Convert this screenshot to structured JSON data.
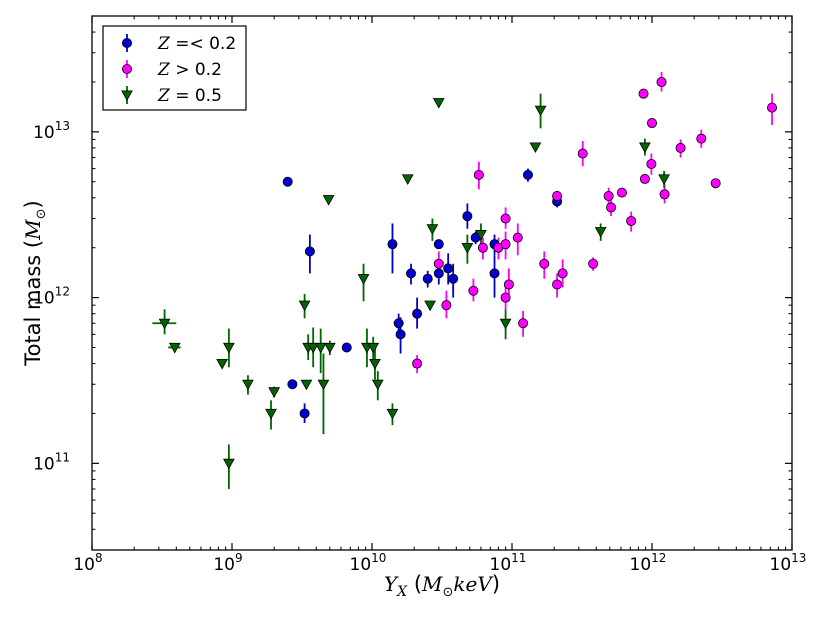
{
  "chart_data": {
    "type": "scatter",
    "xscale": "log",
    "yscale": "log",
    "xlim": [
      100000000.0,
      10000000000000.0
    ],
    "ylim": [
      30000000000.0,
      50000000000000.0
    ],
    "x_ticks": [
      {
        "base": "10",
        "exp": "8",
        "value": 100000000.0
      },
      {
        "base": "10",
        "exp": "9",
        "value": 1000000000.0
      },
      {
        "base": "10",
        "exp": "10",
        "value": 10000000000.0
      },
      {
        "base": "10",
        "exp": "11",
        "value": 100000000000.0
      },
      {
        "base": "10",
        "exp": "12",
        "value": 1000000000000.0
      },
      {
        "base": "10",
        "exp": "13",
        "value": 10000000000000.0
      }
    ],
    "y_ticks": [
      {
        "base": "10",
        "exp": "11",
        "value": 100000000000.0
      },
      {
        "base": "10",
        "exp": "12",
        "value": 1000000000000.0
      },
      {
        "base": "10",
        "exp": "13",
        "value": 10000000000000.0
      }
    ],
    "xlabel": {
      "main": "Y",
      "sub": "X",
      "open": " (",
      "unit": "M",
      "unit_sub": "⊙",
      "unit_rest": "keV",
      "close": ")"
    },
    "ylabel": {
      "main": "Total mass (",
      "unit": "M",
      "unit_sub": "⊙",
      "close": ")"
    },
    "legend_position": "top-left",
    "series": [
      {
        "name": "Z =< 0.2",
        "label_var": "Z",
        "label_rest": " =< 0.2",
        "color": "#0000cc",
        "marker": "circle",
        "points": [
          {
            "x": 2500000000.0,
            "y": 5000000000000.0,
            "lo": 5000000000000.0,
            "hi": 5000000000000.0
          },
          {
            "x": 2700000000.0,
            "y": 300000000000.0,
            "lo": 285000000000.0,
            "hi": 315000000000.0
          },
          {
            "x": 3300000000.0,
            "y": 200000000000.0,
            "lo": 175000000000.0,
            "hi": 230000000000.0
          },
          {
            "x": 3600000000.0,
            "y": 1900000000000.0,
            "lo": 1400000000000.0,
            "hi": 2400000000000.0
          },
          {
            "x": 6600000000.0,
            "y": 500000000000.0,
            "lo": 500000000000.0,
            "hi": 500000000000.0
          },
          {
            "x": 14000000000.0,
            "y": 2100000000000.0,
            "lo": 1400000000000.0,
            "hi": 2800000000000.0
          },
          {
            "x": 15500000000.0,
            "y": 700000000000.0,
            "lo": 620000000000.0,
            "hi": 800000000000.0
          },
          {
            "x": 16000000000.0,
            "y": 600000000000.0,
            "lo": 460000000000.0,
            "hi": 760000000000.0
          },
          {
            "x": 19000000000.0,
            "y": 1400000000000.0,
            "lo": 1200000000000.0,
            "hi": 1600000000000.0
          },
          {
            "x": 21000000000.0,
            "y": 800000000000.0,
            "lo": 650000000000.0,
            "hi": 1000000000000.0
          },
          {
            "x": 25000000000.0,
            "y": 1300000000000.0,
            "lo": 1150000000000.0,
            "hi": 1450000000000.0
          },
          {
            "x": 30000000000.0,
            "y": 2100000000000.0,
            "lo": 2100000000000.0,
            "hi": 2100000000000.0
          },
          {
            "x": 30000000000.0,
            "y": 1400000000000.0,
            "lo": 1200000000000.0,
            "hi": 1650000000000.0
          },
          {
            "x": 35000000000.0,
            "y": 1500000000000.0,
            "lo": 1200000000000.0,
            "hi": 1850000000000.0
          },
          {
            "x": 38000000000.0,
            "y": 1300000000000.0,
            "lo": 1000000000000.0,
            "hi": 1600000000000.0
          },
          {
            "x": 48000000000.0,
            "y": 3100000000000.0,
            "lo": 2600000000000.0,
            "hi": 3700000000000.0
          },
          {
            "x": 55000000000.0,
            "y": 2300000000000.0,
            "lo": 2100000000000.0,
            "hi": 2500000000000.0
          },
          {
            "x": 75000000000.0,
            "y": 2100000000000.0,
            "lo": 1800000000000.0,
            "hi": 2400000000000.0
          },
          {
            "x": 75000000000.0,
            "y": 1400000000000.0,
            "lo": 1000000000000.0,
            "hi": 1800000000000.0
          },
          {
            "x": 130000000000.0,
            "y": 5500000000000.0,
            "lo": 5000000000000.0,
            "hi": 6000000000000.0
          },
          {
            "x": 210000000000.0,
            "y": 3800000000000.0,
            "lo": 3500000000000.0,
            "hi": 4100000000000.0
          }
        ]
      },
      {
        "name": "Z > 0.2",
        "label_var": "Z",
        "label_rest": " > 0.2",
        "color": "#ff00ff",
        "marker": "circle",
        "points": [
          {
            "x": 21000000000.0,
            "y": 400000000000.0,
            "lo": 350000000000.0,
            "hi": 450000000000.0
          },
          {
            "x": 30000000000.0,
            "y": 1600000000000.0,
            "lo": 1300000000000.0,
            "hi": 1900000000000.0
          },
          {
            "x": 34000000000.0,
            "y": 900000000000.0,
            "lo": 750000000000.0,
            "hi": 1100000000000.0
          },
          {
            "x": 53000000000.0,
            "y": 1100000000000.0,
            "lo": 950000000000.0,
            "hi": 1300000000000.0
          },
          {
            "x": 58000000000.0,
            "y": 5500000000000.0,
            "lo": 4500000000000.0,
            "hi": 6600000000000.0
          },
          {
            "x": 62000000000.0,
            "y": 2000000000000.0,
            "lo": 1700000000000.0,
            "hi": 2300000000000.0
          },
          {
            "x": 80000000000.0,
            "y": 2000000000000.0,
            "lo": 1700000000000.0,
            "hi": 2300000000000.0
          },
          {
            "x": 90000000000.0,
            "y": 2100000000000.0,
            "lo": 1700000000000.0,
            "hi": 2500000000000.0
          },
          {
            "x": 90000000000.0,
            "y": 3000000000000.0,
            "lo": 2600000000000.0,
            "hi": 3500000000000.0
          },
          {
            "x": 90000000000.0,
            "y": 1000000000000.0,
            "lo": 850000000000.0,
            "hi": 1200000000000.0
          },
          {
            "x": 95000000000.0,
            "y": 1200000000000.0,
            "lo": 950000000000.0,
            "hi": 1500000000000.0
          },
          {
            "x": 110000000000.0,
            "y": 2300000000000.0,
            "lo": 1800000000000.0,
            "hi": 2800000000000.0
          },
          {
            "x": 120000000000.0,
            "y": 700000000000.0,
            "lo": 580000000000.0,
            "hi": 830000000000.0
          },
          {
            "x": 170000000000.0,
            "y": 1600000000000.0,
            "lo": 1300000000000.0,
            "hi": 1900000000000.0
          },
          {
            "x": 210000000000.0,
            "y": 4100000000000.0,
            "lo": 3800000000000.0,
            "hi": 4400000000000.0
          },
          {
            "x": 210000000000.0,
            "y": 1200000000000.0,
            "lo": 1000000000000.0,
            "hi": 1400000000000.0
          },
          {
            "x": 230000000000.0,
            "y": 1400000000000.0,
            "lo": 1150000000000.0,
            "hi": 1700000000000.0
          },
          {
            "x": 320000000000.0,
            "y": 7400000000000.0,
            "lo": 6200000000000.0,
            "hi": 8800000000000.0
          },
          {
            "x": 380000000000.0,
            "y": 1600000000000.0,
            "lo": 1450000000000.0,
            "hi": 1750000000000.0
          },
          {
            "x": 490000000000.0,
            "y": 4100000000000.0,
            "lo": 3600000000000.0,
            "hi": 4600000000000.0
          },
          {
            "x": 510000000000.0,
            "y": 3500000000000.0,
            "lo": 3100000000000.0,
            "hi": 3900000000000.0
          },
          {
            "x": 610000000000.0,
            "y": 4300000000000.0,
            "lo": 4300000000000.0,
            "hi": 4300000000000.0
          },
          {
            "x": 710000000000.0,
            "y": 2900000000000.0,
            "lo": 2500000000000.0,
            "hi": 3300000000000.0
          },
          {
            "x": 870000000000.0,
            "y": 17000000000000.0,
            "lo": 17000000000000.0,
            "hi": 17000000000000.0
          },
          {
            "x": 890000000000.0,
            "y": 5200000000000.0,
            "lo": 5200000000000.0,
            "hi": 5200000000000.0
          },
          {
            "x": 990000000000.0,
            "y": 6400000000000.0,
            "lo": 5500000000000.0,
            "hi": 7400000000000.0
          },
          {
            "x": 1000000000000.0,
            "y": 11300000000000.0,
            "lo": 11300000000000.0,
            "hi": 11300000000000.0
          },
          {
            "x": 1170000000000.0,
            "y": 20000000000000.0,
            "lo": 17500000000000.0,
            "hi": 23000000000000.0
          },
          {
            "x": 1230000000000.0,
            "y": 4200000000000.0,
            "lo": 3700000000000.0,
            "hi": 4800000000000.0
          },
          {
            "x": 1600000000000.0,
            "y": 8000000000000.0,
            "lo": 7000000000000.0,
            "hi": 9000000000000.0
          },
          {
            "x": 2250000000000.0,
            "y": 9100000000000.0,
            "lo": 8000000000000.0,
            "hi": 10300000000000.0
          },
          {
            "x": 2850000000000.0,
            "y": 4900000000000.0,
            "lo": 4900000000000.0,
            "hi": 4900000000000.0
          },
          {
            "x": 7200000000000.0,
            "y": 14000000000000.0,
            "lo": 11000000000000.0,
            "hi": 17000000000000.0
          }
        ]
      },
      {
        "name": "Z = 0.5",
        "label_var": "Z",
        "label_rest": " = 0.5",
        "color": "#006400",
        "marker": "triangle-down",
        "points": [
          {
            "x": 330000000.0,
            "y": 700000000000.0,
            "lo": 600000000000.0,
            "hi": 850000000000.0,
            "xlo": 270000000.0,
            "xhi": 400000000.0
          },
          {
            "x": 390000000.0,
            "y": 500000000000.0,
            "lo": 500000000000.0,
            "hi": 500000000000.0,
            "xlo": 350000000.0,
            "xhi": 430000000.0
          },
          {
            "x": 850000000.0,
            "y": 400000000000.0,
            "lo": 400000000000.0,
            "hi": 400000000000.0
          },
          {
            "x": 950000000.0,
            "y": 500000000000.0,
            "lo": 380000000000.0,
            "hi": 650000000000.0
          },
          {
            "x": 950000000.0,
            "y": 100000000000.0,
            "lo": 70000000000.0,
            "hi": 130000000000.0
          },
          {
            "x": 1300000000.0,
            "y": 300000000000.0,
            "lo": 260000000000.0,
            "hi": 340000000000.0
          },
          {
            "x": 1900000000.0,
            "y": 200000000000.0,
            "lo": 160000000000.0,
            "hi": 240000000000.0
          },
          {
            "x": 2000000000.0,
            "y": 270000000000.0,
            "lo": 250000000000.0,
            "hi": 290000000000.0
          },
          {
            "x": 3300000000.0,
            "y": 900000000000.0,
            "lo": 750000000000.0,
            "hi": 1050000000000.0
          },
          {
            "x": 3400000000.0,
            "y": 300000000000.0,
            "lo": 300000000000.0,
            "hi": 300000000000.0
          },
          {
            "x": 3500000000.0,
            "y": 500000000000.0,
            "lo": 420000000000.0,
            "hi": 600000000000.0
          },
          {
            "x": 3800000000.0,
            "y": 500000000000.0,
            "lo": 380000000000.0,
            "hi": 660000000000.0
          },
          {
            "x": 4300000000.0,
            "y": 500000000000.0,
            "lo": 350000000000.0,
            "hi": 650000000000.0
          },
          {
            "x": 4500000000.0,
            "y": 300000000000.0,
            "lo": 150000000000.0,
            "hi": 460000000000.0
          },
          {
            "x": 4900000000.0,
            "y": 3900000000000.0,
            "lo": 3900000000000.0,
            "hi": 3900000000000.0
          },
          {
            "x": 5000000000.0,
            "y": 500000000000.0,
            "lo": 450000000000.0,
            "hi": 550000000000.0
          },
          {
            "x": 8700000000.0,
            "y": 1300000000000.0,
            "lo": 950000000000.0,
            "hi": 1600000000000.0
          },
          {
            "x": 9200000000.0,
            "y": 500000000000.0,
            "lo": 380000000000.0,
            "hi": 650000000000.0
          },
          {
            "x": 10200000000.0,
            "y": 500000000000.0,
            "lo": 420000000000.0,
            "hi": 580000000000.0
          },
          {
            "x": 10500000000.0,
            "y": 400000000000.0,
            "lo": 320000000000.0,
            "hi": 500000000000.0
          },
          {
            "x": 11000000000.0,
            "y": 300000000000.0,
            "lo": 240000000000.0,
            "hi": 360000000000.0
          },
          {
            "x": 14000000000.0,
            "y": 200000000000.0,
            "lo": 170000000000.0,
            "hi": 230000000000.0
          },
          {
            "x": 18000000000.0,
            "y": 5200000000000.0,
            "lo": 5200000000000.0,
            "hi": 5200000000000.0
          },
          {
            "x": 26000000000.0,
            "y": 900000000000.0,
            "lo": 900000000000.0,
            "hi": 900000000000.0
          },
          {
            "x": 27000000000.0,
            "y": 2600000000000.0,
            "lo": 2200000000000.0,
            "hi": 3000000000000.0
          },
          {
            "x": 30000000000.0,
            "y": 15000000000000.0,
            "lo": 15000000000000.0,
            "hi": 15000000000000.0
          },
          {
            "x": 48000000000.0,
            "y": 2000000000000.0,
            "lo": 1600000000000.0,
            "hi": 2400000000000.0
          },
          {
            "x": 60000000000.0,
            "y": 2400000000000.0,
            "lo": 1950000000000.0,
            "hi": 2800000000000.0
          },
          {
            "x": 90000000000.0,
            "y": 700000000000.0,
            "lo": 560000000000.0,
            "hi": 850000000000.0
          },
          {
            "x": 147000000000.0,
            "y": 8100000000000.0,
            "lo": 8100000000000.0,
            "hi": 8100000000000.0
          },
          {
            "x": 160000000000.0,
            "y": 13500000000000.0,
            "lo": 10500000000000.0,
            "hi": 17000000000000.0
          },
          {
            "x": 430000000000.0,
            "y": 2500000000000.0,
            "lo": 2200000000000.0,
            "hi": 2800000000000.0
          },
          {
            "x": 890000000000.0,
            "y": 8100000000000.0,
            "lo": 7200000000000.0,
            "hi": 9100000000000.0
          },
          {
            "x": 1220000000000.0,
            "y": 5200000000000.0,
            "lo": 4600000000000.0,
            "hi": 5800000000000.0
          }
        ]
      }
    ]
  }
}
